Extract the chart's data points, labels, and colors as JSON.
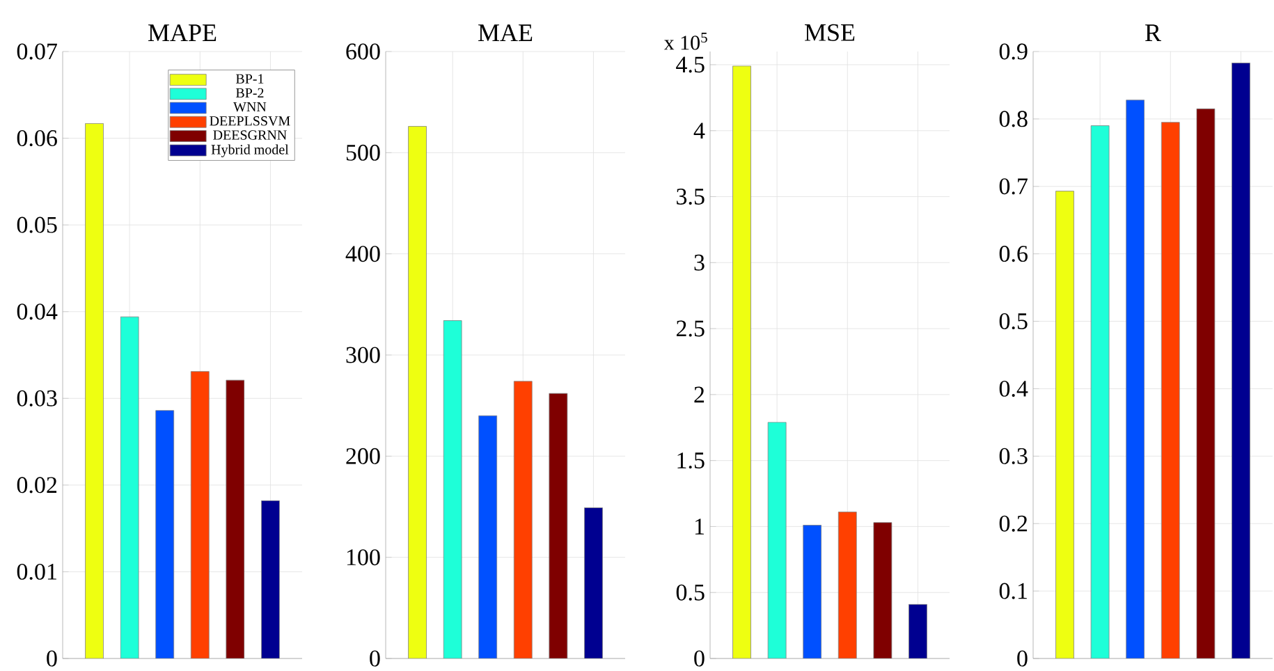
{
  "chart_data": [
    {
      "type": "bar",
      "title": "MAPE",
      "categories": [
        null
      ],
      "ylim": [
        0,
        0.07
      ],
      "yticks": [
        0,
        0.01,
        0.02,
        0.03,
        0.04,
        0.05,
        0.06,
        0.07
      ],
      "grid": true,
      "legend": "top right",
      "series": [
        {
          "name": "BP-1",
          "color": "#eeff11",
          "values": [
            0.0617
          ]
        },
        {
          "name": "BP-2",
          "color": "#1effd8",
          "values": [
            0.0394
          ]
        },
        {
          "name": "WNN",
          "color": "#0050ff",
          "values": [
            0.0286
          ]
        },
        {
          "name": "DEEPLSSVM",
          "color": "#ff4000",
          "values": [
            0.0331
          ]
        },
        {
          "name": "DEESGRNN",
          "color": "#7f0000",
          "values": [
            0.0321
          ]
        },
        {
          "name": "Hybrid model",
          "color": "#000090",
          "values": [
            0.0182
          ]
        }
      ]
    },
    {
      "type": "bar",
      "title": "MAE",
      "categories": [
        null
      ],
      "ylim": [
        0,
        600
      ],
      "yticks": [
        0,
        100,
        200,
        300,
        400,
        500,
        600
      ],
      "grid": true,
      "series": [
        {
          "color": "#eeff11",
          "values": [
            526
          ]
        },
        {
          "color": "#1effd8",
          "values": [
            334
          ]
        },
        {
          "color": "#0050ff",
          "values": [
            240
          ]
        },
        {
          "color": "#ff4000",
          "values": [
            274
          ]
        },
        {
          "color": "#7f0000",
          "values": [
            262
          ]
        },
        {
          "color": "#000090",
          "values": [
            149
          ]
        }
      ]
    },
    {
      "type": "bar",
      "title": "MSE",
      "annotations": [
        "x 10$^{5}$"
      ],
      "categories": [
        null
      ],
      "ylim": [
        0,
        4.6
      ],
      "yticks": [
        0,
        0.5,
        1,
        1.5,
        2,
        2.5,
        3,
        3.5,
        4,
        4.5
      ],
      "grid": true,
      "series": [
        {
          "color": "#eeff11",
          "values": [
            4.49
          ]
        },
        {
          "color": "#1effd8",
          "values": [
            1.79
          ]
        },
        {
          "color": "#0050ff",
          "values": [
            1.01
          ]
        },
        {
          "color": "#ff4000",
          "values": [
            1.11
          ]
        },
        {
          "color": "#7f0000",
          "values": [
            1.03
          ]
        },
        {
          "color": "#000090",
          "values": [
            0.41
          ]
        }
      ]
    },
    {
      "type": "bar",
      "title": "R",
      "categories": [
        null
      ],
      "ylim": [
        0,
        0.9
      ],
      "yticks": [
        0,
        0.1,
        0.2,
        0.3,
        0.4,
        0.5,
        0.6,
        0.7,
        0.8,
        0.9
      ],
      "grid": true,
      "series": [
        {
          "color": "#eeff11",
          "values": [
            0.693
          ]
        },
        {
          "color": "#1effd8",
          "values": [
            0.79
          ]
        },
        {
          "color": "#0050ff",
          "values": [
            0.828
          ]
        },
        {
          "color": "#ff4000",
          "values": [
            0.795
          ]
        },
        {
          "color": "#7f0000",
          "values": [
            0.815
          ]
        },
        {
          "color": "#000090",
          "values": [
            0.883
          ]
        }
      ]
    }
  ]
}
